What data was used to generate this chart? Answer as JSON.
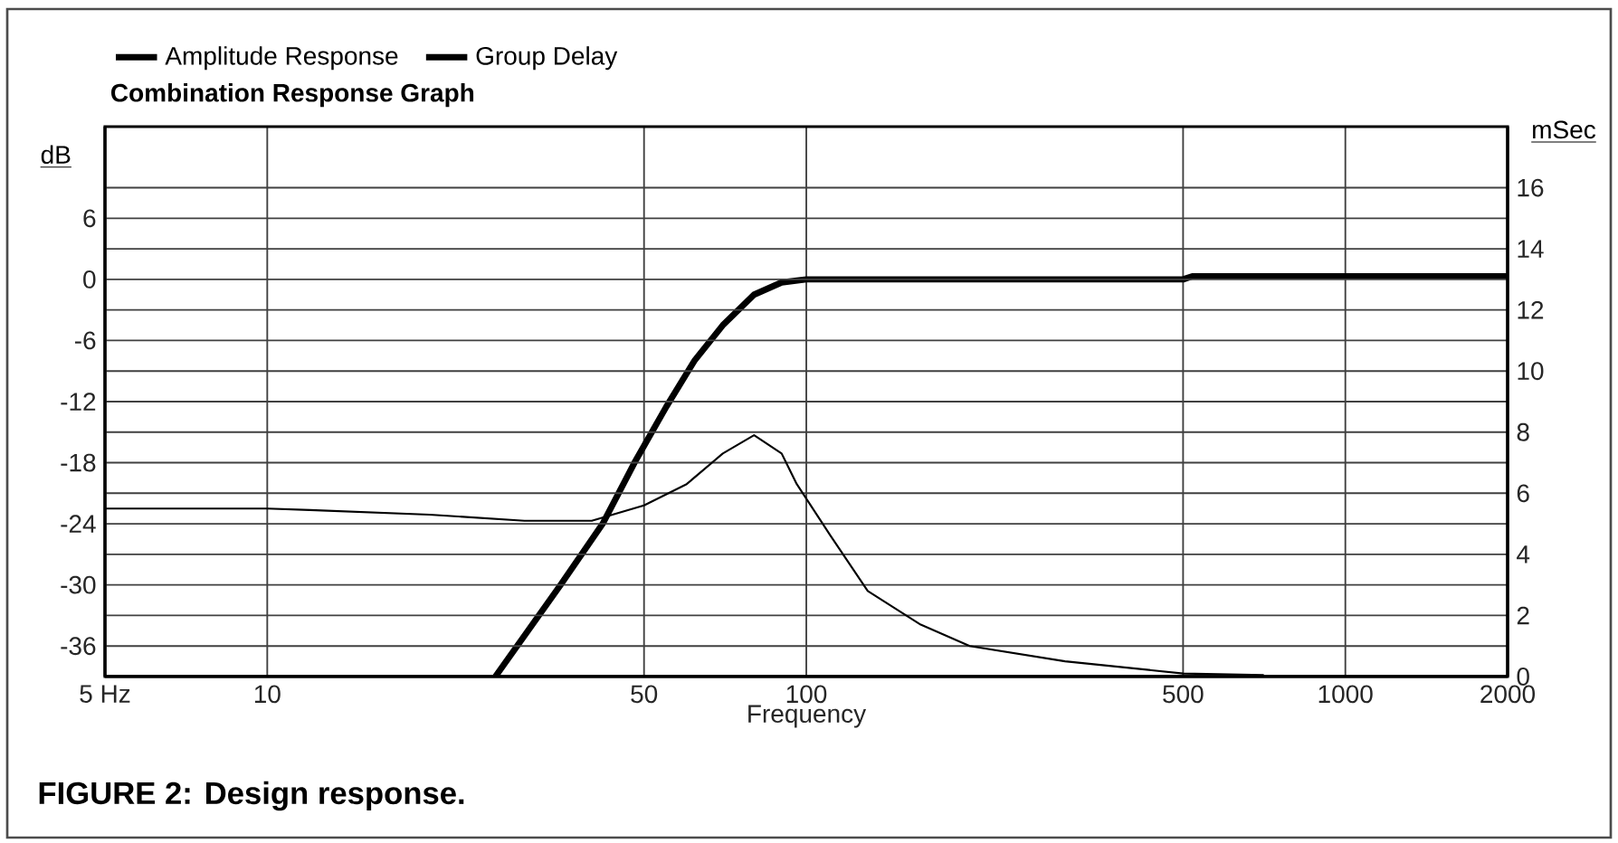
{
  "chart_data": {
    "type": "line",
    "title": "Combination Response Graph",
    "xlabel": "Frequency",
    "ylabel": "dB",
    "y2label": "mSec",
    "annotations": [
      "FIGURE 2: Design response."
    ],
    "log": "x",
    "grid": true,
    "legend": "top left",
    "marker": "none",
    "line_style": "solid",
    "xlim": [
      5,
      2000
    ],
    "xticks": [
      {
        "value": 5,
        "label": "5  Hz"
      },
      10,
      50,
      100,
      500,
      1000,
      2000
    ],
    "ylim": [
      -39,
      15
    ],
    "yticks": [
      -36,
      -30,
      -24,
      -18,
      -12,
      -6,
      0,
      6
    ],
    "y2lim": [
      0,
      18
    ],
    "y2ticks": [
      0,
      2,
      4,
      6,
      8,
      10,
      12,
      14,
      16
    ],
    "series": [
      {
        "name": "Amplitude Response",
        "color": "#000000",
        "x": [
          26.5,
          35,
          41.9,
          48,
          55,
          62,
          70,
          80,
          90,
          100,
          200,
          500,
          520,
          2000
        ],
        "values": [
          -39,
          -30,
          -24,
          -18,
          -12.5,
          -8,
          -4.5,
          -1.5,
          -0.3,
          0,
          0,
          0,
          0.3,
          0.3
        ]
      },
      {
        "name": "Group Delay",
        "color": "#000000",
        "axis": "y2",
        "x": [
          5,
          10,
          12,
          20,
          30,
          40,
          50,
          60,
          70,
          80,
          90,
          96,
          111,
          130,
          163,
          201,
          302,
          500,
          706
        ],
        "values": [
          5.5,
          5.5,
          5.45,
          5.3,
          5.1,
          5.1,
          5.6,
          6.3,
          7.3,
          7.9,
          7.3,
          6.3,
          4.6,
          2.8,
          1.7,
          1.0,
          0.5,
          0.1,
          0.05
        ]
      }
    ]
  }
}
